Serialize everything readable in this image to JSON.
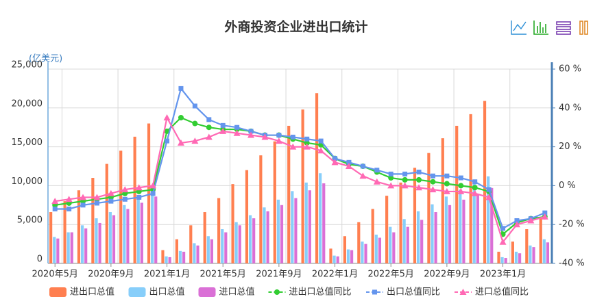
{
  "chart_data": {
    "type": "bar",
    "title": "外商投资企业进出口统计",
    "y_label": "(亿美元)",
    "categories": [
      "2020年5月",
      null,
      null,
      null,
      "2020年9月",
      null,
      null,
      null,
      "2021年1月",
      null,
      null,
      null,
      "2021年5月",
      null,
      null,
      null,
      "2021年9月",
      null,
      null,
      null,
      "2022年1月",
      null,
      null,
      null,
      "2022年5月",
      null,
      null,
      null,
      "2022年9月",
      null,
      null,
      null,
      "2023年1月",
      null,
      null,
      null
    ],
    "ylim": [
      0,
      25000
    ],
    "yticks": [
      0,
      {
        "value": 5000,
        "label": "5,000"
      },
      {
        "value": 10000,
        "label": "10,000"
      },
      {
        "value": 15000,
        "label": "15,000"
      },
      {
        "value": 20000,
        "label": "20,000"
      },
      {
        "value": 25000,
        "label": "25,000"
      }
    ],
    "y2lim": [
      -40,
      60
    ],
    "y2ticks": [
      {
        "value": -40,
        "label": "-40 %"
      },
      {
        "value": -20,
        "label": "-20 %"
      },
      {
        "value": 0,
        "label": "0 %"
      },
      {
        "value": 20,
        "label": "20 %"
      },
      {
        "value": 40,
        "label": "40 %"
      },
      {
        "value": 60,
        "label": "60 %"
      }
    ],
    "grid": true,
    "legend": "bottom",
    "series": [
      {
        "name": "进出口总值",
        "type": "bar",
        "color": "#ff7f50",
        "values": [
          6600,
          8000,
          9400,
          11000,
          12800,
          14500,
          16300,
          18000,
          1700,
          3100,
          4900,
          6600,
          8400,
          10200,
          12000,
          13900,
          15700,
          17700,
          19800,
          21900,
          1900,
          3500,
          5300,
          7000,
          8700,
          10400,
          12300,
          14200,
          16100,
          17700,
          19200,
          20900,
          1500,
          2800,
          4400,
          5800
        ]
      },
      {
        "name": "出口总值",
        "type": "bar",
        "color": "#87cefa",
        "values": [
          3400,
          4000,
          4900,
          5800,
          6600,
          7500,
          8500,
          9400,
          900,
          1600,
          2600,
          3500,
          4400,
          5300,
          6200,
          7200,
          8200,
          9300,
          10400,
          11600,
          1000,
          1800,
          2800,
          3700,
          4700,
          5700,
          6700,
          7600,
          8600,
          9500,
          10300,
          11200,
          800,
          1500,
          2300,
          3100
        ]
      },
      {
        "name": "进口总值",
        "type": "bar",
        "color": "#da70d6",
        "values": [
          3200,
          4000,
          4500,
          5200,
          6200,
          7000,
          7800,
          8600,
          800,
          1500,
          2300,
          3100,
          4000,
          4900,
          5800,
          6700,
          7500,
          8400,
          9400,
          10300,
          900,
          1700,
          2500,
          3300,
          4000,
          4700,
          5600,
          6600,
          7500,
          8200,
          8900,
          9700,
          700,
          1300,
          2100,
          2700
        ]
      },
      {
        "name": "进出口总值同比",
        "type": "line",
        "axis": "y2",
        "marker": "circle",
        "color": "#32cd32",
        "values": [
          -10,
          -9,
          -8,
          -7,
          -6,
          -4,
          -3,
          -2,
          28,
          35,
          32,
          30,
          29,
          29,
          28,
          26,
          26,
          24,
          22,
          21,
          14,
          11,
          10,
          7,
          4,
          3,
          3,
          2,
          1,
          0,
          -1,
          -3,
          -25,
          -19,
          -17,
          -16
        ]
      },
      {
        "name": "出口总值同比",
        "type": "line",
        "axis": "y2",
        "marker": "rect",
        "color": "#6495ed",
        "values": [
          -12,
          -12,
          -10,
          -9,
          -8,
          -7,
          -6,
          -4,
          23,
          50,
          41,
          34,
          31,
          30,
          28,
          26,
          26,
          25,
          24,
          23,
          14,
          12,
          10,
          8,
          6,
          6,
          7,
          5,
          5,
          4,
          2,
          -2,
          -22,
          -18,
          -17,
          -14
        ]
      },
      {
        "name": "进口总值同比",
        "type": "line",
        "axis": "y2",
        "marker": "triangle",
        "color": "#ff69b4",
        "values": [
          -8,
          -7,
          -6,
          -6,
          -4,
          -2,
          -1,
          0,
          35,
          22,
          23,
          25,
          28,
          27,
          26,
          25,
          23,
          20,
          20,
          18,
          12,
          10,
          5,
          2,
          0,
          0,
          -1,
          -2,
          -3,
          -3,
          -4,
          -6,
          -29,
          -20,
          -18,
          -16
        ]
      }
    ]
  }
}
